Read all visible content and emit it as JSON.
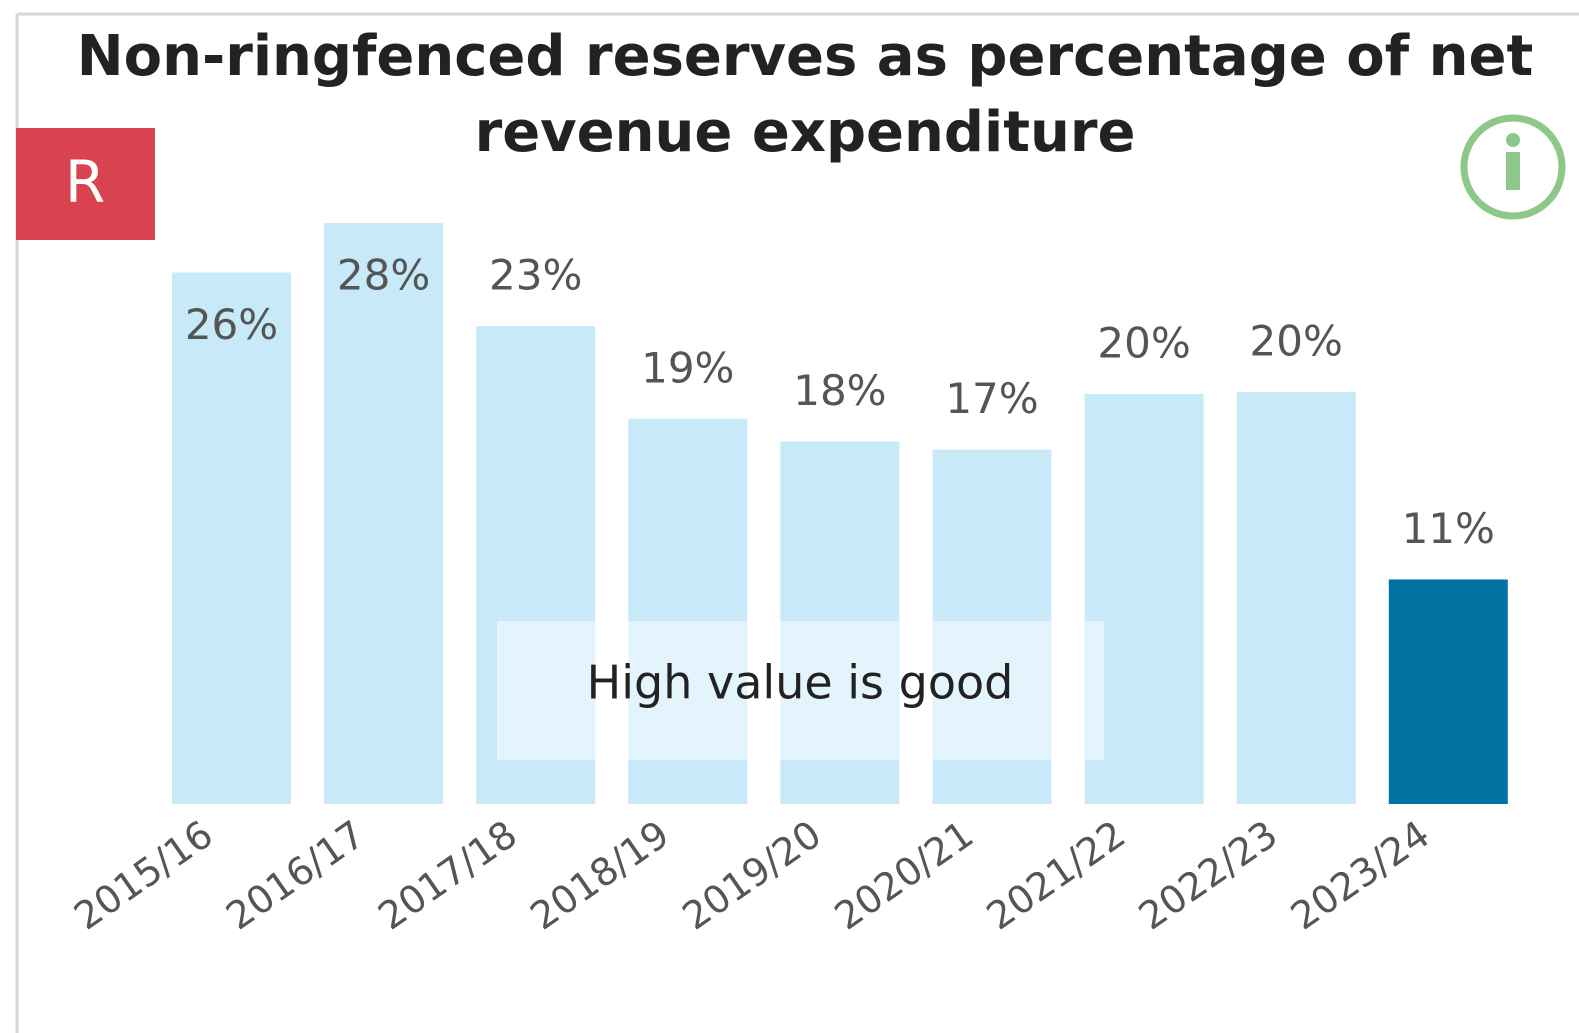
{
  "chart_data": {
    "type": "bar",
    "title": "Non-ringfenced reserves as percentage of net revenue expenditure",
    "badge": "R",
    "annotation": "High value is good",
    "categories": [
      "2015/16",
      "2016/17",
      "2017/18",
      "2018/19",
      "2019/20",
      "2020/21",
      "2021/22",
      "2022/23",
      "2023/24"
    ],
    "values": [
      25.8,
      28.2,
      23.2,
      18.7,
      17.6,
      17.2,
      19.9,
      20.0,
      10.9
    ],
    "value_labels": [
      "26%",
      "28%",
      "23%",
      "19%",
      "18%",
      "17%",
      "20%",
      "20%",
      "11%"
    ],
    "colors": [
      "#c8e9f8",
      "#c8e9f8",
      "#c8e9f8",
      "#c8e9f8",
      "#c8e9f8",
      "#c8e9f8",
      "#c8e9f8",
      "#c8e9f8",
      "#0073a1"
    ],
    "ylim": [
      0,
      30
    ]
  }
}
